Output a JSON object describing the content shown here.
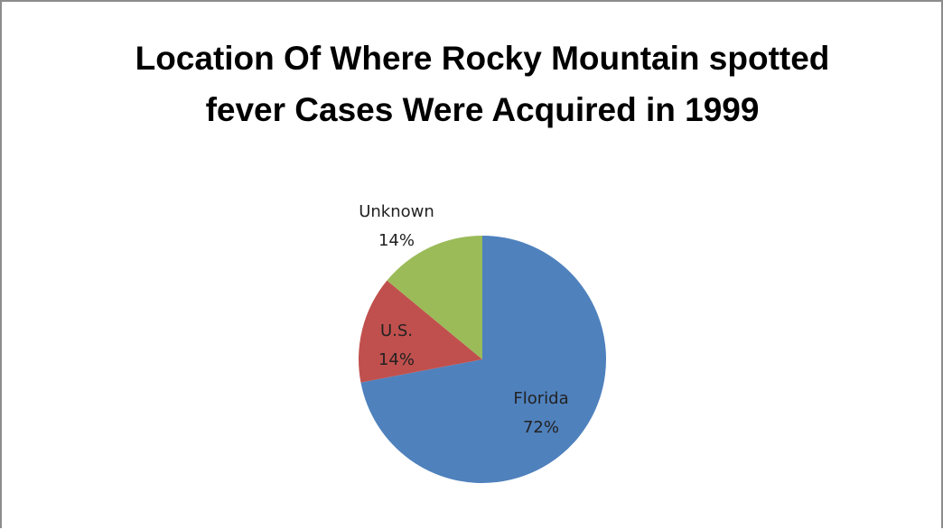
{
  "chart_data": {
    "type": "pie",
    "title": "Location Of Where Rocky Mountain spotted fever Cases Were Acquired in 1999",
    "categories": [
      "Florida",
      "U.S.",
      "Unknown"
    ],
    "values": [
      72,
      14,
      14
    ],
    "value_labels": [
      "72%",
      "14%",
      "14%"
    ],
    "colors": [
      "#4f81bd",
      "#c0504d",
      "#9bbb59"
    ]
  }
}
